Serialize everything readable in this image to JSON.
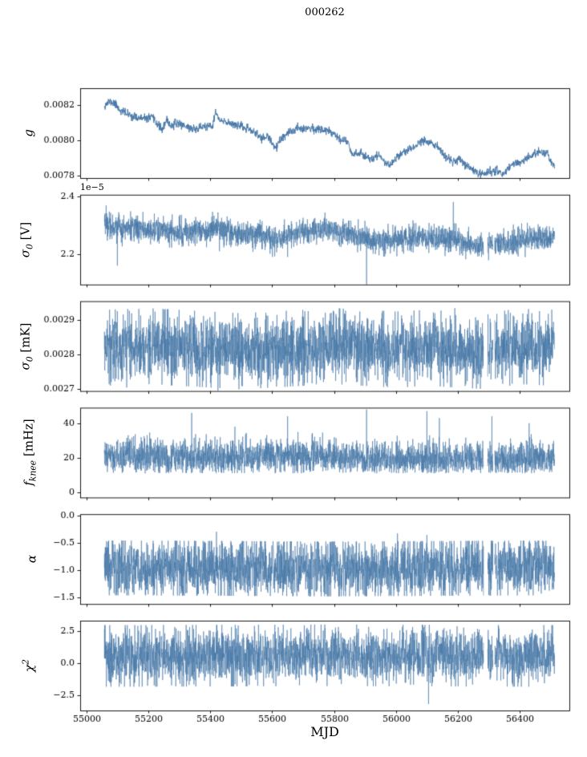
{
  "chart_data": {
    "type": "line",
    "title": "000262",
    "xlabel": "MJD",
    "line_color": "#4878a8",
    "background": "#ffffff",
    "legend": "none",
    "grid": false,
    "xlim": [
      54980,
      56560
    ],
    "xticks": [
      55000,
      55200,
      55400,
      55600,
      55800,
      56000,
      56200,
      56400
    ],
    "xtick_labels": [
      "55000",
      "55200",
      "55400",
      "55600",
      "55800",
      "56000",
      "56200",
      "56400"
    ],
    "x_data_range": [
      55058,
      56512
    ],
    "gaps": [
      [
        56283,
        56296
      ],
      [
        56313,
        56319
      ]
    ],
    "panels": [
      {
        "name": "gain",
        "ylabel": {
          "pre": "g",
          "sub": "",
          "sup": "",
          "post": ""
        },
        "offset_text": "",
        "ylim": [
          0.007785,
          0.008295
        ],
        "ytick_values": [
          0.0078,
          0.008,
          0.0082
        ],
        "ytick_labels": [
          "0.0078",
          "0.0080",
          "0.0082"
        ],
        "has_gaps": false,
        "series": {
          "n": 1700,
          "seed": 11,
          "sigma": 1.2e-05,
          "dev": 3e-05,
          "trend": [
            [
              55060,
              0.0082
            ],
            [
              55075,
              0.00822
            ],
            [
              55090,
              0.00821
            ],
            [
              55110,
              0.00817
            ],
            [
              55130,
              0.00815
            ],
            [
              55160,
              0.00813
            ],
            [
              55185,
              0.00812
            ],
            [
              55210,
              0.00813
            ],
            [
              55230,
              0.00809
            ],
            [
              55245,
              0.00806
            ],
            [
              55260,
              0.00811
            ],
            [
              55275,
              0.00808
            ],
            [
              55295,
              0.0081
            ],
            [
              55320,
              0.00808
            ],
            [
              55350,
              0.00806
            ],
            [
              55380,
              0.00808
            ],
            [
              55405,
              0.00807
            ],
            [
              55418,
              0.00816
            ],
            [
              55430,
              0.00811
            ],
            [
              55455,
              0.0081
            ],
            [
              55485,
              0.00809
            ],
            [
              55510,
              0.00807
            ],
            [
              55540,
              0.00805
            ],
            [
              55565,
              0.00801
            ],
            [
              55585,
              0.00802
            ],
            [
              55605,
              0.00797
            ],
            [
              55615,
              0.00796
            ],
            [
              55630,
              0.00801
            ],
            [
              55655,
              0.00804
            ],
            [
              55680,
              0.00807
            ],
            [
              55710,
              0.00807
            ],
            [
              55745,
              0.00806
            ],
            [
              55775,
              0.00806
            ],
            [
              55800,
              0.00804
            ],
            [
              55825,
              0.008
            ],
            [
              55845,
              0.00799
            ],
            [
              55858,
              0.00792
            ],
            [
              55880,
              0.00793
            ],
            [
              55900,
              0.00791
            ],
            [
              55925,
              0.00789
            ],
            [
              55945,
              0.00792
            ],
            [
              55965,
              0.00787
            ],
            [
              55985,
              0.00786
            ],
            [
              56005,
              0.00791
            ],
            [
              56030,
              0.00794
            ],
            [
              56060,
              0.00796
            ],
            [
              56085,
              0.008
            ],
            [
              56110,
              0.00799
            ],
            [
              56135,
              0.00796
            ],
            [
              56160,
              0.0079
            ],
            [
              56185,
              0.00788
            ],
            [
              56205,
              0.00789
            ],
            [
              56225,
              0.00786
            ],
            [
              56250,
              0.00783
            ],
            [
              56275,
              0.00781
            ],
            [
              56300,
              0.00782
            ],
            [
              56325,
              0.00783
            ],
            [
              56345,
              0.00781
            ],
            [
              56365,
              0.00784
            ],
            [
              56385,
              0.00788
            ],
            [
              56405,
              0.00787
            ],
            [
              56425,
              0.0079
            ],
            [
              56450,
              0.00792
            ],
            [
              56470,
              0.00794
            ],
            [
              56490,
              0.00792
            ],
            [
              56510,
              0.00785
            ]
          ],
          "spikes": []
        }
      },
      {
        "name": "sigma0-volts",
        "ylabel": {
          "pre": "σ",
          "sub": "0",
          "sup": "",
          "post": " [V]"
        },
        "offset_text": "1e−5",
        "unit_scale": "1e-5",
        "ylim": [
          2.095,
          2.405
        ],
        "ytick_values": [
          2.2,
          2.4
        ],
        "ytick_labels": [
          "2.2",
          "2.4"
        ],
        "has_gaps": true,
        "series": {
          "n": 3000,
          "seed": 22,
          "sigma": 0.022,
          "dev": 0.06,
          "trend": [
            [
              55060,
              2.31
            ],
            [
              55080,
              2.3
            ],
            [
              55120,
              2.285
            ],
            [
              55160,
              2.29
            ],
            [
              55200,
              2.285
            ],
            [
              55250,
              2.28
            ],
            [
              55300,
              2.275
            ],
            [
              55350,
              2.28
            ],
            [
              55400,
              2.285
            ],
            [
              55430,
              2.29
            ],
            [
              55470,
              2.27
            ],
            [
              55520,
              2.265
            ],
            [
              55560,
              2.27
            ],
            [
              55600,
              2.25
            ],
            [
              55640,
              2.26
            ],
            [
              55680,
              2.275
            ],
            [
              55720,
              2.28
            ],
            [
              55760,
              2.285
            ],
            [
              55800,
              2.28
            ],
            [
              55840,
              2.27
            ],
            [
              55880,
              2.26
            ],
            [
              55920,
              2.25
            ],
            [
              55960,
              2.245
            ],
            [
              56000,
              2.25
            ],
            [
              56040,
              2.255
            ],
            [
              56080,
              2.26
            ],
            [
              56120,
              2.255
            ],
            [
              56160,
              2.25
            ],
            [
              56200,
              2.245
            ],
            [
              56240,
              2.235
            ],
            [
              56280,
              2.23
            ],
            [
              56320,
              2.235
            ],
            [
              56360,
              2.24
            ],
            [
              56400,
              2.245
            ],
            [
              56440,
              2.25
            ],
            [
              56480,
              2.255
            ],
            [
              56510,
              2.255
            ]
          ],
          "spikes": [
            [
              55100,
              2.16
            ],
            [
              55430,
              2.21
            ],
            [
              55650,
              2.19
            ],
            [
              55905,
              2.09
            ],
            [
              56185,
              2.38
            ]
          ]
        }
      },
      {
        "name": "sigma0-millikelvin",
        "ylabel": {
          "pre": "σ",
          "sub": "0",
          "sup": "",
          "post": " [mK]"
        },
        "offset_text": "",
        "ylim": [
          0.002695,
          0.002955
        ],
        "ytick_values": [
          0.0027,
          0.0028,
          0.0029
        ],
        "ytick_labels": [
          "0.0027",
          "0.0028",
          "0.0029"
        ],
        "has_gaps": true,
        "series": {
          "n": 3000,
          "seed": 33,
          "sigma": 4.8e-05,
          "dev": 0.00011,
          "trend": [
            [
              55060,
              0.00282
            ],
            [
              55200,
              0.002825
            ],
            [
              55300,
              0.00282
            ],
            [
              55400,
              0.002815
            ],
            [
              55500,
              0.00281
            ],
            [
              55600,
              0.002815
            ],
            [
              55700,
              0.00282
            ],
            [
              55800,
              0.002825
            ],
            [
              55900,
              0.00282
            ],
            [
              56000,
              0.002815
            ],
            [
              56100,
              0.00282
            ],
            [
              56200,
              0.002815
            ],
            [
              56300,
              0.00281
            ],
            [
              56400,
              0.002825
            ],
            [
              56510,
              0.00282
            ]
          ],
          "spikes": [
            [
              55130,
              0.002705
            ],
            [
              55425,
              0.002695
            ],
            [
              55910,
              0.00275
            ],
            [
              56190,
              0.002935
            ],
            [
              56280,
              0.00276
            ]
          ]
        }
      },
      {
        "name": "knee-frequency",
        "ylabel": {
          "pre": "f",
          "sub": "knee",
          "sup": "",
          "post": " [mHz]"
        },
        "offset_text": "",
        "ylim": [
          -3,
          49
        ],
        "ytick_values": [
          0,
          20,
          40
        ],
        "ytick_labels": [
          "0",
          "20",
          "40"
        ],
        "has_gaps": true,
        "series": {
          "n": 3000,
          "seed": 44,
          "sigma": 5.0,
          "dev": 14,
          "floor": 11,
          "trend": [
            [
              55060,
              21
            ],
            [
              55400,
              20
            ],
            [
              55700,
              21
            ],
            [
              56000,
              19
            ],
            [
              56300,
              19
            ],
            [
              56510,
              20
            ]
          ],
          "spikes": [
            [
              55340,
              46
            ],
            [
              55480,
              38
            ],
            [
              55650,
              44
            ],
            [
              55905,
              48
            ],
            [
              56100,
              47
            ],
            [
              56140,
              43
            ],
            [
              56310,
              44
            ],
            [
              56430,
              40
            ]
          ]
        }
      },
      {
        "name": "alpha",
        "ylabel": {
          "pre": "α",
          "sub": "",
          "sup": "",
          "post": ""
        },
        "offset_text": "",
        "ylim": [
          -1.62,
          0.02
        ],
        "ytick_values": [
          0.0,
          -0.5,
          -1.0,
          -1.5
        ],
        "ytick_labels": [
          "0.0",
          "−0.5",
          "−1.0",
          "−1.5"
        ],
        "has_gaps": true,
        "series": {
          "n": 3000,
          "seed": 55,
          "sigma": 0.27,
          "dev": 0.5,
          "trend": [
            [
              55060,
              -0.96
            ],
            [
              55800,
              -0.98
            ],
            [
              56510,
              -0.96
            ]
          ],
          "spikes": [
            [
              55420,
              -0.3
            ],
            [
              56005,
              -0.33
            ],
            [
              56100,
              -0.36
            ]
          ]
        }
      },
      {
        "name": "chi-squared",
        "ylabel": {
          "pre": "χ",
          "sub": "",
          "sup": "2",
          "post": ""
        },
        "offset_text": "",
        "ylim": [
          -3.7,
          3.3
        ],
        "ytick_values": [
          2.5,
          0.0,
          -2.5
        ],
        "ytick_labels": [
          "2.5",
          "0.0",
          "−2.5"
        ],
        "has_gaps": true,
        "series": {
          "n": 3000,
          "seed": 66,
          "sigma": 1.05,
          "dev": 2.4,
          "trend": [
            [
              55060,
              0.55
            ],
            [
              55800,
              0.6
            ],
            [
              56510,
              0.55
            ]
          ],
          "spikes": [
            [
              56105,
              -3.2
            ]
          ]
        }
      }
    ]
  }
}
